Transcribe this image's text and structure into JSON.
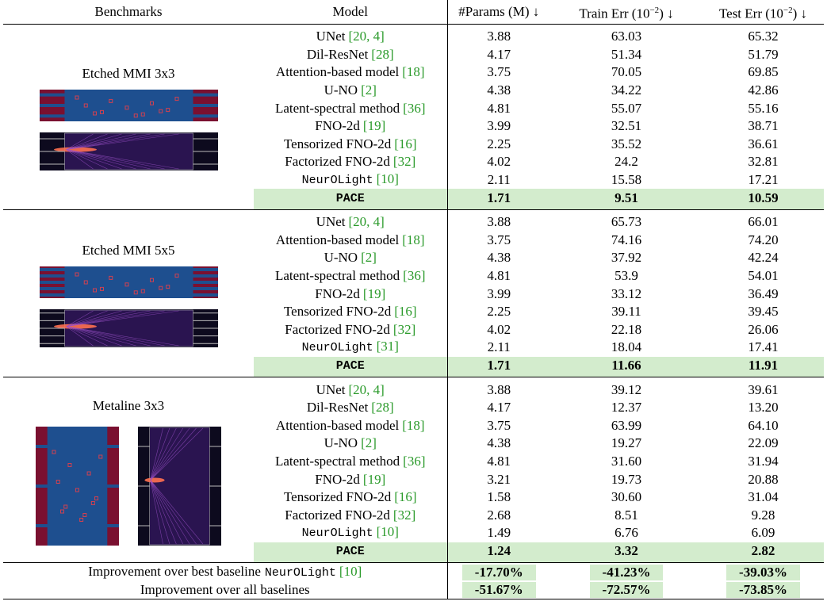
{
  "header": [
    {
      "text": "Benchmarks"
    },
    {
      "text": "Model"
    },
    {
      "text": "#Params (M) ↓"
    },
    {
      "text": "Train Err (10",
      "sup": "−2",
      "tail": ") ↓"
    },
    {
      "text": "Test Err (10",
      "sup": "−2",
      "tail": ") ↓"
    }
  ],
  "sections": [
    {
      "benchmark": "Etched MMI 3x3",
      "rows": [
        {
          "model": "UNet",
          "cite": "[20, 4]",
          "params": "3.88",
          "train": "63.03",
          "test": "65.32"
        },
        {
          "model": "Dil-ResNet",
          "cite": "[28]",
          "params": "4.17",
          "train": "51.34",
          "test": "51.79"
        },
        {
          "model": "Attention-based model",
          "cite": "[18]",
          "params": "3.75",
          "train": "70.05",
          "test": "69.85"
        },
        {
          "model": "U-NO",
          "cite": "[2]",
          "params": "4.38",
          "train": "34.22",
          "test": "42.86"
        },
        {
          "model": "Latent-spectral method",
          "cite": "[36]",
          "params": "4.81",
          "train": "55.07",
          "test": "55.16"
        },
        {
          "model": "FNO-2d",
          "cite": "[19]",
          "params": "3.99",
          "train": "32.51",
          "test": "38.71"
        },
        {
          "model": "Tensorized FNO-2d",
          "cite": "[16]",
          "params": "2.25",
          "train": "35.52",
          "test": "36.61"
        },
        {
          "model": "Factorized FNO-2d",
          "cite": "[32]",
          "params": "4.02",
          "train": "24.2",
          "test": "32.81"
        },
        {
          "model": "NeurOLight",
          "cite": "[10]",
          "font": "mono",
          "params": "2.11",
          "train": "15.58",
          "test": "17.21"
        },
        {
          "model": "PACE",
          "font": "mono",
          "bold": true,
          "params": "1.71",
          "train": "9.51",
          "test": "10.59"
        }
      ]
    },
    {
      "benchmark": "Etched MMI 5x5",
      "rows": [
        {
          "model": "UNet",
          "cite": "[20, 4]",
          "params": "3.88",
          "train": "65.73",
          "test": "66.01"
        },
        {
          "model": "Attention-based model",
          "cite": "[18]",
          "params": "3.75",
          "train": "74.16",
          "test": "74.20"
        },
        {
          "model": "U-NO",
          "cite": "[2]",
          "params": "4.38",
          "train": "37.92",
          "test": "42.24"
        },
        {
          "model": "Latent-spectral method",
          "cite": "[36]",
          "params": "4.81",
          "train": "53.9",
          "test": "54.01"
        },
        {
          "model": "FNO-2d",
          "cite": "[19]",
          "params": "3.99",
          "train": "33.12",
          "test": "36.49"
        },
        {
          "model": "Tensorized FNO-2d",
          "cite": "[16]",
          "params": "2.25",
          "train": "39.11",
          "test": "39.45"
        },
        {
          "model": "Factorized FNO-2d",
          "cite": "[32]",
          "params": "4.02",
          "train": "22.18",
          "test": "26.06"
        },
        {
          "model": "NeurOLight",
          "cite": "[31]",
          "font": "mono",
          "params": "2.11",
          "train": "18.04",
          "test": "17.41"
        },
        {
          "model": "PACE",
          "font": "mono",
          "bold": true,
          "params": "1.71",
          "train": "11.66",
          "test": "11.91"
        }
      ]
    },
    {
      "benchmark": "Metaline 3x3",
      "rows": [
        {
          "model": "UNet",
          "cite": "[20, 4]",
          "params": "3.88",
          "train": "39.12",
          "test": "39.61"
        },
        {
          "model": "Dil-ResNet",
          "cite": "[28]",
          "params": "4.17",
          "train": "12.37",
          "test": "13.20"
        },
        {
          "model": "Attention-based model",
          "cite": "[18]",
          "params": "3.75",
          "train": "63.99",
          "test": "64.10"
        },
        {
          "model": "U-NO",
          "cite": "[2]",
          "params": "4.38",
          "train": "19.27",
          "test": "22.09"
        },
        {
          "model": "Latent-spectral method",
          "cite": "[36]",
          "params": "4.81",
          "train": "31.60",
          "test": "31.94"
        },
        {
          "model": "FNO-2d",
          "cite": "[19]",
          "params": "3.21",
          "train": "19.73",
          "test": "20.88"
        },
        {
          "model": "Tensorized FNO-2d",
          "cite": "[16]",
          "params": "1.58",
          "train": "30.60",
          "test": "31.04"
        },
        {
          "model": "Factorized FNO-2d",
          "cite": "[32]",
          "params": "2.68",
          "train": "8.51",
          "test": "9.28"
        },
        {
          "model": "NeurOLight",
          "cite": "[10]",
          "font": "mono",
          "params": "1.49",
          "train": "6.76",
          "test": "6.09"
        },
        {
          "model": "PACE",
          "font": "mono",
          "bold": true,
          "params": "1.24",
          "train": "3.32",
          "test": "2.82"
        }
      ]
    }
  ],
  "footer": [
    {
      "label": "Improvement over best baseline",
      "model": "NeurOLight",
      "cite": "[10]",
      "params": "-17.70%",
      "train": "-41.23%",
      "test": "-39.03%"
    },
    {
      "label": "Improvement over all baselines",
      "params": "-51.67%",
      "train": "-72.57%",
      "test": "-73.85%"
    }
  ]
}
